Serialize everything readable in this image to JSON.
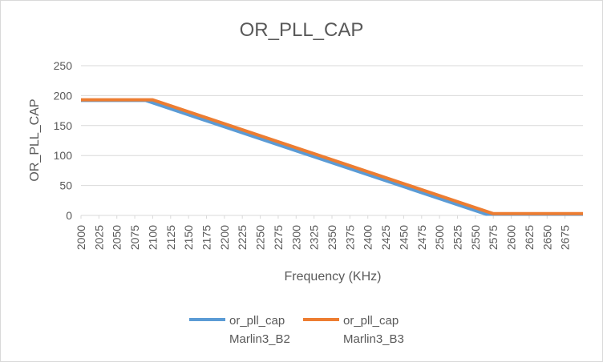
{
  "chart_data": {
    "type": "line",
    "title": "OR_PLL_CAP",
    "xlabel": "Frequency (KHz)",
    "ylabel": "OR_PLL_CAP",
    "ylim": [
      0,
      250
    ],
    "yticks": [
      "0",
      "50",
      "100",
      "150",
      "200",
      "250"
    ],
    "xticks": [
      "2000",
      "2025",
      "2050",
      "2075",
      "2100",
      "2125",
      "2150",
      "2175",
      "2200",
      "2225",
      "2250",
      "2275",
      "2300",
      "2325",
      "2350",
      "2375",
      "2400",
      "2425",
      "2450",
      "2475",
      "2500",
      "2525",
      "2550",
      "2575",
      "2600",
      "2625",
      "2650",
      "2675"
    ],
    "xlim": [
      2000,
      2700
    ],
    "grid": true,
    "legend_position": "bottom",
    "series": [
      {
        "name_line1": "or_pll_cap",
        "name_line2": "Marlin3_B2",
        "color": "#5b9bd5",
        "points": [
          [
            2000,
            192
          ],
          [
            2090,
            192
          ],
          [
            2565,
            2
          ],
          [
            2700,
            2
          ]
        ]
      },
      {
        "name_line1": "or_pll_cap",
        "name_line2": "Marlin3_B3",
        "color": "#ed7d31",
        "points": [
          [
            2000,
            193
          ],
          [
            2100,
            193
          ],
          [
            2575,
            3
          ],
          [
            2700,
            3
          ]
        ]
      }
    ]
  }
}
